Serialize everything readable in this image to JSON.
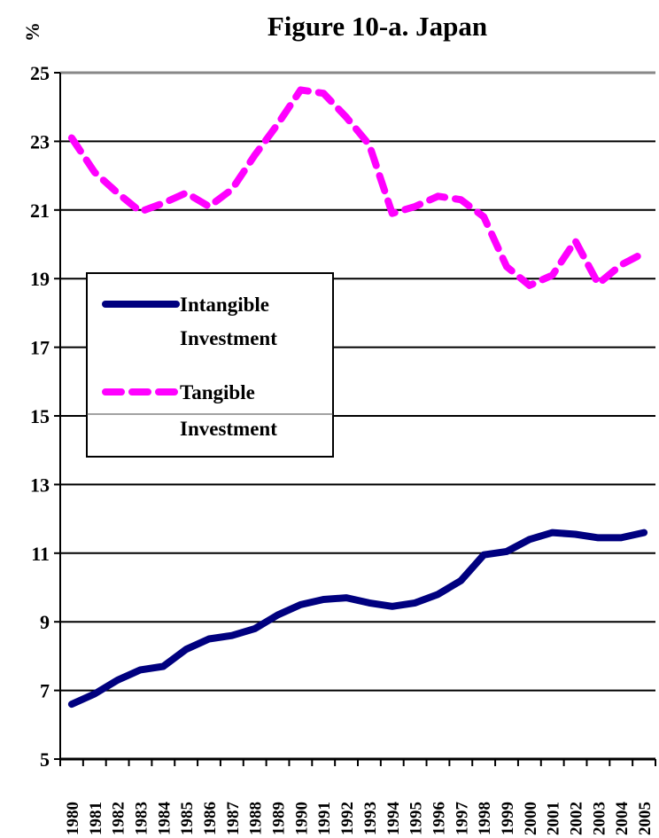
{
  "chart_data": {
    "type": "line",
    "title": "Figure 10-a. Japan",
    "ylabel": "%",
    "xlabel": "",
    "ylim": [
      5,
      25
    ],
    "yticks": [
      5,
      7,
      9,
      11,
      13,
      15,
      17,
      19,
      21,
      23,
      25
    ],
    "categories": [
      "1980",
      "1981",
      "1982",
      "1983",
      "1984",
      "1985",
      "1986",
      "1987",
      "1988",
      "1989",
      "1990",
      "1991",
      "1992",
      "1993",
      "1994",
      "1995",
      "1996",
      "1997",
      "1998",
      "1999",
      "2000",
      "2001",
      "2002",
      "2003",
      "2004",
      "2005"
    ],
    "grid": "horizontal",
    "legend_position": "left-middle",
    "legend": [
      {
        "label_line1": "Intangible",
        "label_line2": "Investment"
      },
      {
        "label_line1": "Tangible",
        "label_line2": "Investment"
      }
    ],
    "series": [
      {
        "name": "Intangible Investment",
        "color": "#00007f",
        "style": "solid",
        "values": [
          6.6,
          6.9,
          7.3,
          7.6,
          7.7,
          8.2,
          8.5,
          8.6,
          8.8,
          9.2,
          9.5,
          9.65,
          9.7,
          9.55,
          9.45,
          9.55,
          9.8,
          10.2,
          10.95,
          11.05,
          11.4,
          11.6,
          11.55,
          11.45,
          11.45,
          11.6
        ]
      },
      {
        "name": "Tangible Investment",
        "color": "#ff00ff",
        "style": "dashed",
        "values": [
          23.1,
          22.1,
          21.5,
          20.95,
          21.2,
          21.5,
          21.1,
          21.6,
          22.6,
          23.5,
          24.5,
          24.4,
          23.7,
          22.9,
          20.9,
          21.1,
          21.4,
          21.3,
          20.8,
          19.35,
          18.8,
          19.1,
          20.1,
          18.85,
          19.4,
          19.75
        ]
      }
    ]
  }
}
